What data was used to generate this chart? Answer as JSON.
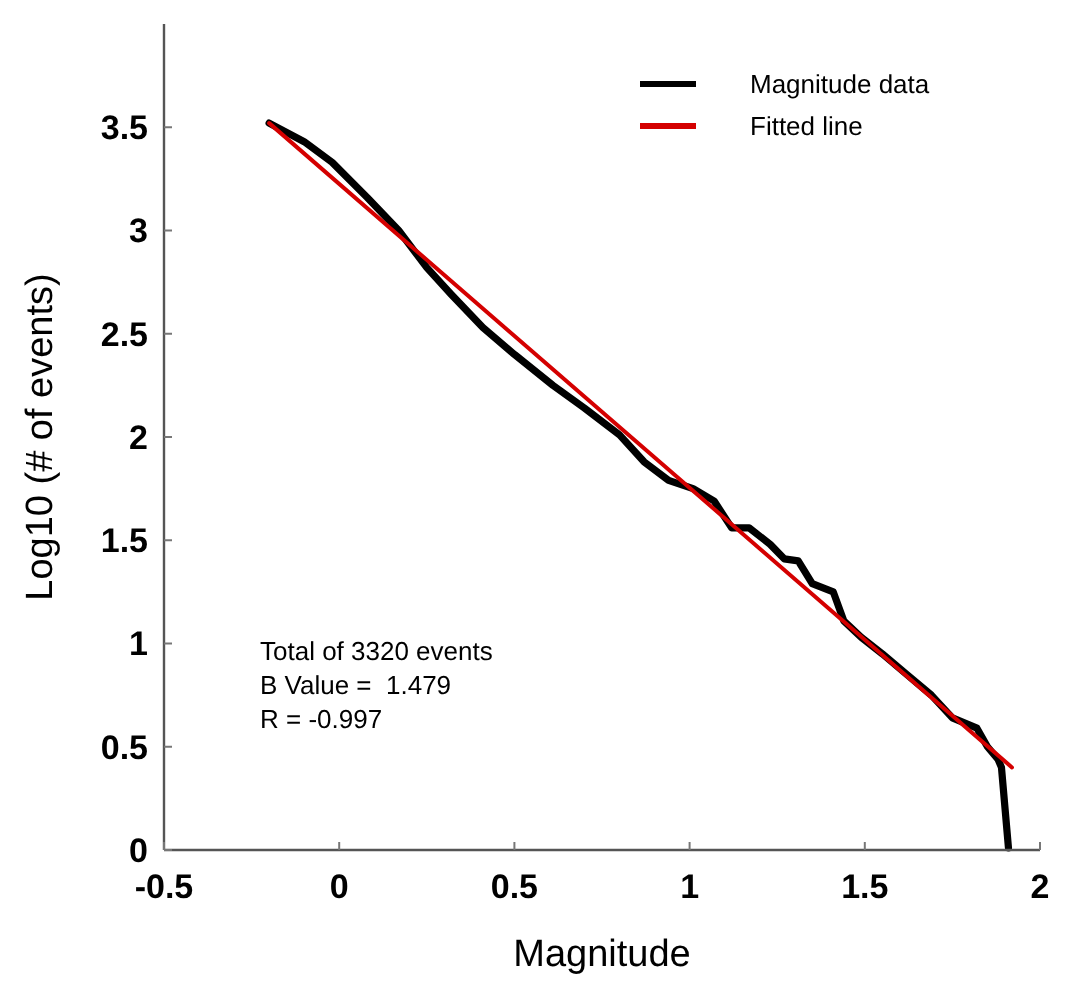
{
  "chart_data": {
    "type": "line",
    "xlabel": "Magnitude",
    "ylabel": "Log10 (# of events)",
    "xlim": [
      -0.5,
      2
    ],
    "xticks": [
      -0.5,
      0,
      0.5,
      1,
      1.5,
      2
    ],
    "ylim": [
      0,
      4
    ],
    "yticks": [
      0,
      0.5,
      1,
      1.5,
      2,
      2.5,
      3,
      3.5
    ],
    "grid": false,
    "legend": "top right",
    "marker": "none",
    "line_style": "solid",
    "series": [
      {
        "name": "Magnitude data",
        "color": "#000000",
        "x": [
          -0.2,
          -0.1,
          -0.02,
          0.08,
          0.17,
          0.25,
          0.32,
          0.41,
          0.5,
          0.61,
          0.7,
          0.8,
          0.87,
          0.94,
          1.01,
          1.07,
          1.12,
          1.17,
          1.23,
          1.27,
          1.31,
          1.35,
          1.41,
          1.44,
          1.49,
          1.55,
          1.62,
          1.69,
          1.75,
          1.82,
          1.85,
          1.88,
          1.89,
          1.91
        ],
        "values": [
          3.52,
          3.43,
          3.33,
          3.16,
          3.0,
          2.82,
          2.69,
          2.53,
          2.4,
          2.25,
          2.14,
          2.01,
          1.88,
          1.79,
          1.75,
          1.69,
          1.56,
          1.56,
          1.48,
          1.41,
          1.4,
          1.29,
          1.25,
          1.11,
          1.03,
          0.95,
          0.85,
          0.75,
          0.64,
          0.59,
          0.5,
          0.44,
          0.4,
          0.01
        ]
      },
      {
        "name": "Fitted line",
        "color": "#d40000",
        "x": [
          -0.2,
          1.92
        ],
        "values": [
          3.52,
          0.4
        ]
      }
    ],
    "annotations": [
      "Total of 3320 events",
      "B Value =  1.479",
      "R = -0.997"
    ]
  }
}
